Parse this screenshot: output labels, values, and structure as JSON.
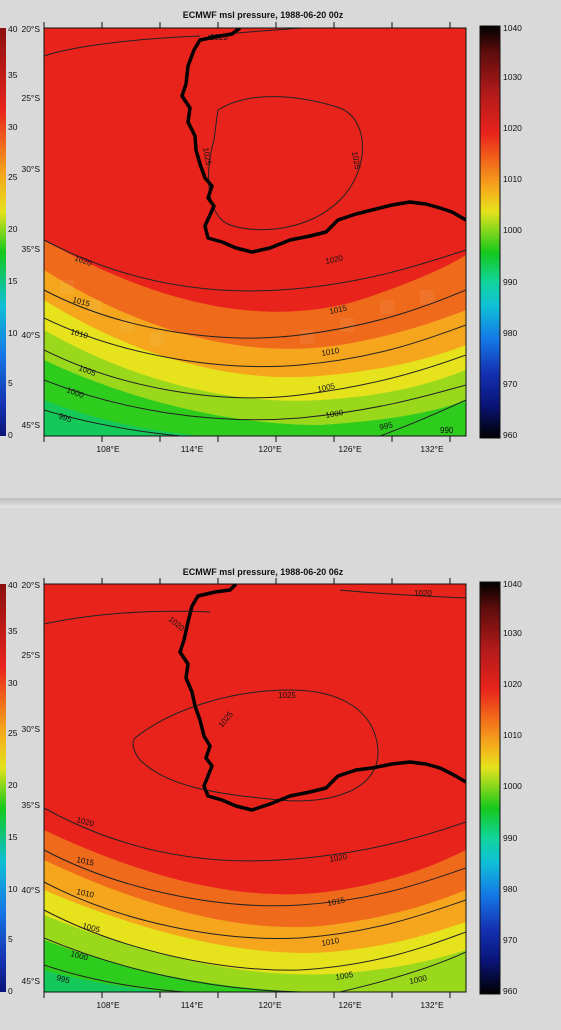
{
  "panels": [
    {
      "title": "ECMWF msl pressure, 1988-06-20 00z",
      "lat_labels": [
        "20°S",
        "25°S",
        "30°S",
        "35°S",
        "40°S",
        "45°S"
      ],
      "lon_labels": [
        "108°E",
        "114°E",
        "120°E",
        "126°E",
        "132°E"
      ],
      "colorbar_labels": [
        "1040",
        "1030",
        "1020",
        "1010",
        "1000",
        "990",
        "980",
        "970",
        "960"
      ],
      "left_colorbar_labels": [
        "40",
        "35",
        "30",
        "25",
        "20",
        "15",
        "10",
        "5",
        "0"
      ],
      "contour_labels": [
        "1020",
        "1025",
        "1025",
        "1020",
        "1020",
        "1015",
        "1015",
        "1010",
        "1010",
        "1005",
        "1005",
        "1000",
        "1000",
        "995",
        "995",
        "990"
      ]
    },
    {
      "title": "ECMWF msl pressure, 1988-06-20 06z",
      "lat_labels": [
        "20°S",
        "25°S",
        "30°S",
        "35°S",
        "40°S",
        "45°S"
      ],
      "lon_labels": [
        "108°E",
        "114°E",
        "120°E",
        "126°E",
        "132°E"
      ],
      "colorbar_labels": [
        "1040",
        "1030",
        "1020",
        "1010",
        "1000",
        "990",
        "980",
        "970",
        "960"
      ],
      "left_colorbar_labels": [
        "40",
        "35",
        "30",
        "25",
        "20",
        "15",
        "10",
        "5",
        "0"
      ],
      "contour_labels": [
        "1020",
        "1020",
        "1025",
        "1025",
        "1020",
        "1020",
        "1015",
        "1015",
        "1010",
        "1010",
        "1005",
        "1005",
        "1000",
        "1000",
        "995"
      ]
    }
  ],
  "colors": {
    "high": "#e8231c",
    "ramp": [
      "#000000",
      "#5a0c0c",
      "#b01a1a",
      "#e8231c",
      "#f26a1a",
      "#f5b01c",
      "#e6e21c",
      "#7ed61c",
      "#14c81c",
      "#12d49a",
      "#0fc0d6",
      "#1478e6",
      "#1432b4",
      "#0a1478",
      "#000000"
    ]
  }
}
